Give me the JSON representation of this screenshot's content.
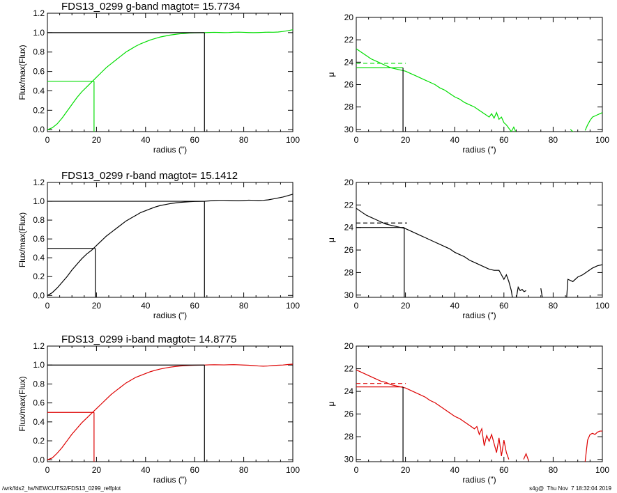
{
  "footer": {
    "path": "/wrk/fds2_hs/NEWCUTS2/FDS13_0299_reffplot",
    "stamp": "s4g@  Thu Nov  7 18:32:04 2019"
  },
  "chart_data": [
    {
      "type": "line",
      "band": "g",
      "color": "#00dd00",
      "title": "FDS13_0299 g-band  magtot=      15.7734",
      "xlabel": "radius (\")",
      "ylabel": "Flux/max(Flux)",
      "xlim": [
        0,
        100
      ],
      "ylim": [
        -0.02,
        1.2
      ],
      "xticks": [
        0,
        20,
        40,
        60,
        80,
        100
      ],
      "yticks": [
        0.0,
        0.2,
        0.4,
        0.6,
        0.8,
        1.0,
        1.2
      ],
      "ytick_labels": [
        "0.0",
        "0.2",
        "0.4",
        "0.6",
        "0.8",
        "1.0",
        "1.2"
      ],
      "r_eff": 19,
      "r_total": 64,
      "half_flux": 0.5,
      "x": [
        0,
        2,
        4,
        6,
        8,
        10,
        12,
        14,
        16,
        18,
        20,
        22,
        24,
        26,
        28,
        30,
        32,
        34,
        36,
        38,
        40,
        42,
        44,
        46,
        48,
        50,
        52,
        54,
        56,
        58,
        60,
        62,
        64,
        66,
        68,
        70,
        72,
        74,
        76,
        78,
        80,
        82,
        84,
        86,
        88,
        90,
        92,
        94,
        96,
        98,
        100
      ],
      "y": [
        0.0,
        0.02,
        0.06,
        0.12,
        0.19,
        0.26,
        0.33,
        0.39,
        0.44,
        0.49,
        0.54,
        0.59,
        0.64,
        0.68,
        0.72,
        0.76,
        0.8,
        0.83,
        0.86,
        0.885,
        0.905,
        0.925,
        0.94,
        0.955,
        0.965,
        0.975,
        0.982,
        0.988,
        0.992,
        0.996,
        0.998,
        0.999,
        1.0,
        1.002,
        1.003,
        1.002,
        1.0,
        1.001,
        1.004,
        1.005,
        1.003,
        1.001,
        1.0,
        1.001,
        1.003,
        1.005,
        1.004,
        1.006,
        1.012,
        1.02,
        1.03
      ]
    },
    {
      "type": "line",
      "band": "g",
      "color": "#00dd00",
      "title": "",
      "xlabel": "radius (\")",
      "ylabel": "μ",
      "xlim": [
        0,
        100
      ],
      "ylim": [
        30.2,
        20
      ],
      "reversed_y": true,
      "xticks": [
        0,
        20,
        40,
        60,
        80,
        100
      ],
      "yticks": [
        20,
        22,
        24,
        26,
        28,
        30
      ],
      "ytick_labels": [
        "20",
        "22",
        "24",
        "26",
        "28",
        "30"
      ],
      "r_eff": 19,
      "mu_eff": 24.5,
      "mu_mean": 24.1,
      "segments": [
        {
          "x": [
            0,
            2,
            4,
            6,
            8,
            10,
            12,
            14,
            16,
            18,
            20,
            22,
            24,
            26,
            28,
            30,
            32,
            34,
            36,
            38,
            40,
            42,
            44,
            46,
            48,
            50,
            52,
            54,
            55,
            56,
            57,
            58,
            59,
            60,
            61,
            62,
            63,
            64,
            65
          ],
          "y": [
            22.8,
            23.1,
            23.4,
            23.7,
            23.9,
            24.1,
            24.3,
            24.5,
            24.6,
            24.7,
            24.8,
            25.0,
            25.2,
            25.4,
            25.6,
            25.8,
            26.0,
            26.3,
            26.5,
            26.8,
            27.1,
            27.3,
            27.6,
            27.8,
            28.0,
            28.3,
            28.6,
            28.9,
            28.6,
            29.0,
            28.5,
            29.1,
            28.9,
            29.4,
            29.6,
            29.9,
            30.2,
            29.8,
            30.3
          ]
        },
        {
          "x": [
            87,
            88,
            89
          ],
          "y": [
            30.0,
            30.2,
            30.3
          ]
        },
        {
          "x": [
            93,
            94,
            95,
            96,
            97,
            98,
            99,
            100
          ],
          "y": [
            30.1,
            29.6,
            29.2,
            28.9,
            28.8,
            28.7,
            28.6,
            28.5
          ]
        }
      ]
    },
    {
      "type": "line",
      "band": "r",
      "color": "#000000",
      "title": "FDS13_0299 r-band  magtot=      15.1412",
      "xlabel": "radius (\")",
      "ylabel": "Flux/max(Flux)",
      "xlim": [
        0,
        100
      ],
      "ylim": [
        -0.02,
        1.2
      ],
      "xticks": [
        0,
        20,
        40,
        60,
        80,
        100
      ],
      "yticks": [
        0.0,
        0.2,
        0.4,
        0.6,
        0.8,
        1.0,
        1.2
      ],
      "ytick_labels": [
        "0.0",
        "0.2",
        "0.4",
        "0.6",
        "0.8",
        "1.0",
        "1.2"
      ],
      "r_eff": 19.5,
      "r_total": 64,
      "half_flux": 0.5,
      "x": [
        0,
        2,
        4,
        6,
        8,
        10,
        12,
        14,
        16,
        18,
        20,
        22,
        24,
        26,
        28,
        30,
        32,
        34,
        36,
        38,
        40,
        42,
        44,
        46,
        48,
        50,
        52,
        54,
        56,
        58,
        60,
        62,
        64,
        66,
        68,
        70,
        72,
        74,
        76,
        78,
        80,
        82,
        84,
        86,
        88,
        90,
        92,
        94,
        96,
        98,
        100
      ],
      "y": [
        0.0,
        0.03,
        0.08,
        0.14,
        0.2,
        0.27,
        0.33,
        0.39,
        0.44,
        0.48,
        0.53,
        0.58,
        0.63,
        0.67,
        0.71,
        0.75,
        0.79,
        0.82,
        0.85,
        0.88,
        0.9,
        0.92,
        0.94,
        0.955,
        0.965,
        0.975,
        0.982,
        0.988,
        0.992,
        0.996,
        0.998,
        0.999,
        1.0,
        1.004,
        1.008,
        1.01,
        1.01,
        1.008,
        1.006,
        1.005,
        1.008,
        1.012,
        1.01,
        1.008,
        1.01,
        1.015,
        1.025,
        1.035,
        1.045,
        1.06,
        1.075
      ]
    },
    {
      "type": "line",
      "band": "r",
      "color": "#000000",
      "title": "",
      "xlabel": "radius (\")",
      "ylabel": "μ",
      "xlim": [
        0,
        100
      ],
      "ylim": [
        30.2,
        20
      ],
      "reversed_y": true,
      "xticks": [
        0,
        20,
        40,
        60,
        80,
        100
      ],
      "yticks": [
        20,
        22,
        24,
        26,
        28,
        30
      ],
      "ytick_labels": [
        "20",
        "22",
        "24",
        "26",
        "28",
        "30"
      ],
      "r_eff": 19.5,
      "mu_eff": 24.0,
      "mu_mean": 23.6,
      "segments": [
        {
          "x": [
            0,
            2,
            4,
            6,
            8,
            10,
            12,
            14,
            16,
            18,
            20,
            22,
            24,
            26,
            28,
            30,
            32,
            34,
            36,
            38,
            40,
            42,
            44,
            46,
            48,
            50,
            52,
            54,
            56,
            58,
            59,
            60,
            61,
            62,
            63,
            63.5
          ],
          "y": [
            22.3,
            22.6,
            22.9,
            23.1,
            23.3,
            23.5,
            23.7,
            23.8,
            23.9,
            24.0,
            24.1,
            24.3,
            24.5,
            24.7,
            24.9,
            25.1,
            25.3,
            25.5,
            25.7,
            25.9,
            26.2,
            26.4,
            26.6,
            26.9,
            27.1,
            27.3,
            27.5,
            27.7,
            27.8,
            27.8,
            28.2,
            28.6,
            28.2,
            28.8,
            29.6,
            30.3
          ]
        },
        {
          "x": [
            65,
            65.8,
            66.6,
            67.4,
            68.2,
            69
          ],
          "y": [
            30.3,
            29.3,
            29.6,
            29.5,
            29.7,
            29.6
          ]
        },
        {
          "x": [
            75,
            75.3,
            75.6
          ],
          "y": [
            29.4,
            29.8,
            30.2
          ]
        },
        {
          "x": [
            85.5,
            86,
            88,
            90,
            92,
            94,
            96,
            98,
            100
          ],
          "y": [
            30.2,
            28.6,
            28.8,
            28.4,
            28.2,
            27.9,
            27.6,
            27.4,
            27.3
          ]
        }
      ]
    },
    {
      "type": "line",
      "band": "i",
      "color": "#dd0000",
      "title": "FDS13_0299 i-band  magtot=      14.8775",
      "xlabel": "radius (\")",
      "ylabel": "Flux/max(Flux)",
      "xlim": [
        0,
        100
      ],
      "ylim": [
        -0.02,
        1.2
      ],
      "xticks": [
        0,
        20,
        40,
        60,
        80,
        100
      ],
      "yticks": [
        0.0,
        0.2,
        0.4,
        0.6,
        0.8,
        1.0,
        1.2
      ],
      "ytick_labels": [
        "0.0",
        "0.2",
        "0.4",
        "0.6",
        "0.8",
        "1.0",
        "1.2"
      ],
      "r_eff": 19,
      "r_total": 64,
      "half_flux": 0.5,
      "x": [
        0,
        2,
        4,
        6,
        8,
        10,
        12,
        14,
        16,
        18,
        20,
        22,
        24,
        26,
        28,
        30,
        32,
        34,
        36,
        38,
        40,
        42,
        44,
        46,
        48,
        50,
        52,
        54,
        56,
        58,
        60,
        62,
        64,
        66,
        68,
        70,
        72,
        74,
        76,
        78,
        80,
        82,
        84,
        86,
        88,
        90,
        92,
        94,
        96,
        98,
        100
      ],
      "y": [
        0.0,
        0.02,
        0.07,
        0.13,
        0.2,
        0.27,
        0.33,
        0.39,
        0.44,
        0.49,
        0.54,
        0.59,
        0.64,
        0.69,
        0.73,
        0.77,
        0.81,
        0.84,
        0.87,
        0.89,
        0.91,
        0.93,
        0.945,
        0.958,
        0.968,
        0.977,
        0.984,
        0.989,
        0.993,
        0.996,
        0.998,
        0.999,
        1.0,
        1.002,
        1.003,
        1.002,
        1.001,
        1.003,
        1.004,
        1.002,
        1.0,
        0.998,
        0.994,
        0.99,
        0.988,
        0.99,
        0.995,
        0.998,
        1.0,
        1.005,
        1.01
      ]
    },
    {
      "type": "line",
      "band": "i",
      "color": "#dd0000",
      "title": "",
      "xlabel": "radius (\")",
      "ylabel": "μ",
      "xlim": [
        0,
        100
      ],
      "ylim": [
        30.2,
        20
      ],
      "reversed_y": true,
      "xticks": [
        0,
        20,
        40,
        60,
        80,
        100
      ],
      "yticks": [
        20,
        22,
        24,
        26,
        28,
        30
      ],
      "ytick_labels": [
        "20",
        "22",
        "24",
        "26",
        "28",
        "30"
      ],
      "r_eff": 19,
      "mu_eff": 23.6,
      "mu_mean": 23.3,
      "segments": [
        {
          "x": [
            0,
            2,
            4,
            6,
            8,
            10,
            12,
            14,
            16,
            18,
            20,
            22,
            24,
            26,
            28,
            30,
            32,
            34,
            36,
            38,
            40,
            42,
            44,
            46,
            48,
            49,
            50,
            51,
            52,
            53,
            54,
            55,
            56,
            57,
            58,
            59,
            60,
            61,
            62
          ],
          "y": [
            22.1,
            22.3,
            22.5,
            22.7,
            22.9,
            23.1,
            23.2,
            23.4,
            23.5,
            23.6,
            23.7,
            23.9,
            24.1,
            24.3,
            24.5,
            24.8,
            25.0,
            25.3,
            25.6,
            25.9,
            26.2,
            26.4,
            26.7,
            27.0,
            27.3,
            27.1,
            27.8,
            27.3,
            28.8,
            27.9,
            28.4,
            27.8,
            28.6,
            29.4,
            28.1,
            29.7,
            28.3,
            29.4,
            30.0
          ]
        },
        {
          "x": [
            68,
            69,
            70
          ],
          "y": [
            30.0,
            29.5,
            30.1
          ]
        },
        {
          "x": [
            93,
            94,
            95,
            96,
            97,
            98,
            99,
            100
          ],
          "y": [
            30.2,
            28.3,
            27.8,
            27.7,
            27.8,
            27.6,
            27.5,
            27.5
          ]
        }
      ]
    }
  ]
}
